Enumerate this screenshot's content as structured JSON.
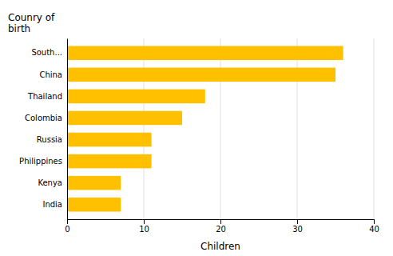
{
  "chart_data": {
    "type": "bar",
    "orientation": "horizontal",
    "categories": [
      "India",
      "Kenya",
      "Philippines",
      "Russia",
      "Colombia",
      "Thailand",
      "China",
      "South..."
    ],
    "values": [
      7,
      7,
      11,
      11,
      15,
      18,
      35,
      36
    ],
    "color": "#FFC000",
    "xlim": [
      0,
      40
    ],
    "xticks": [
      0,
      10,
      20,
      30,
      40
    ],
    "x_label": "Children",
    "y_label": "Counry of\nbirth",
    "grid": true
  }
}
